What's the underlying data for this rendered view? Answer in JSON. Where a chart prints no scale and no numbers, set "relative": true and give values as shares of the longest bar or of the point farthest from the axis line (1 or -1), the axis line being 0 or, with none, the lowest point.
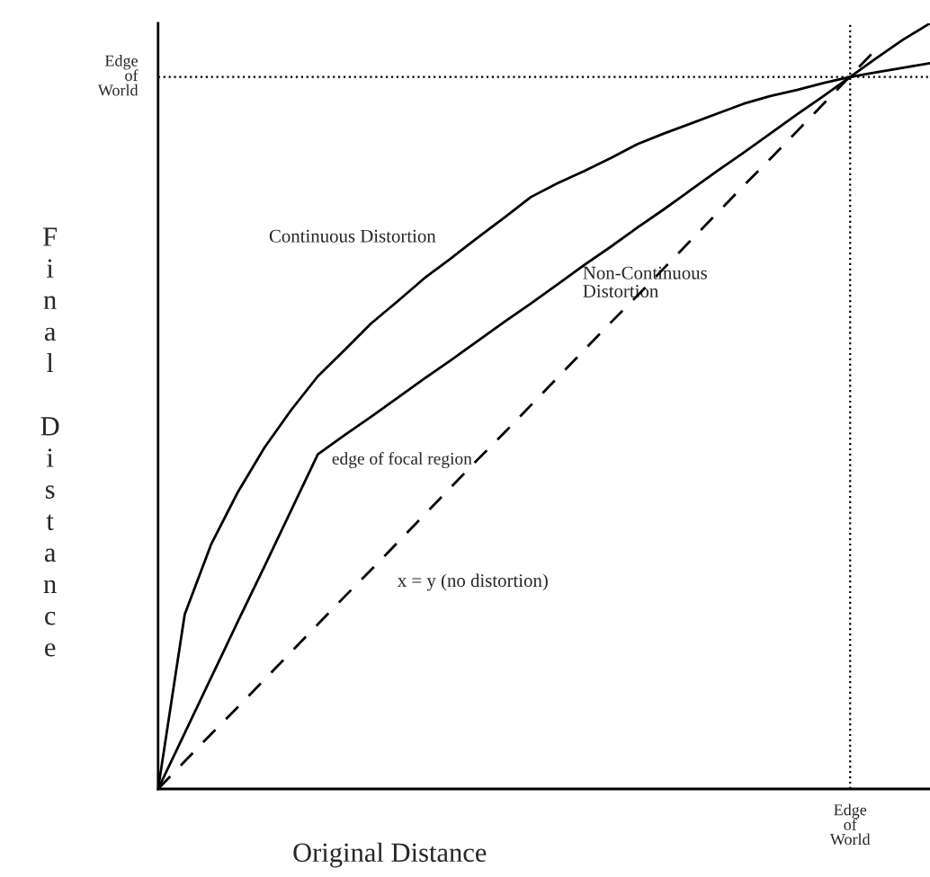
{
  "chart_data": {
    "type": "line",
    "relative": true,
    "xlabel": "Original Distance",
    "ylabel": "Final Distance",
    "categories": [
      null,
      null,
      null,
      null,
      null,
      null,
      null,
      null,
      null,
      null,
      null,
      null,
      null,
      null,
      null,
      null,
      null,
      null,
      null,
      null,
      null,
      null,
      null,
      null,
      null,
      null,
      null,
      null,
      null,
      null
    ],
    "series": [
      {
        "name": "Continuous Distortion",
        "color": "#000000",
        "line_style": "solid",
        "values": [
          0,
          0.228,
          0.32,
          0.388,
          0.446,
          0.495,
          0.539,
          0.573,
          0.608,
          0.637,
          0.667,
          0.693,
          0.72,
          0.746,
          0.773,
          0.791,
          0.807,
          0.824,
          0.842,
          0.856,
          0.869,
          0.882,
          0.895,
          0.905,
          0.913,
          0.922,
          0.93,
          0.936,
          0.942,
          0.948
        ]
      },
      {
        "name": "Non-Continuous Distortion",
        "color": "#000000",
        "line_style": "solid",
        "values": [
          0,
          0.073,
          0.146,
          0.219,
          0.291,
          0.364,
          0.437,
          0.462,
          0.486,
          0.511,
          0.536,
          0.56,
          0.585,
          0.61,
          0.634,
          0.659,
          0.684,
          0.708,
          0.733,
          0.757,
          0.782,
          0.807,
          0.831,
          0.856,
          0.881,
          0.905,
          0.93,
          0.955,
          0.979,
          1.0
        ]
      },
      {
        "name": "x = y (no distortion)",
        "color": "#000000",
        "line_style": "dashed",
        "values": [
          0,
          0.036,
          0.072,
          0.107,
          0.143,
          0.179,
          0.215,
          0.251,
          0.286,
          0.322,
          0.358,
          0.394,
          0.43,
          0.465,
          0.501,
          0.537,
          0.573,
          0.609,
          0.644,
          0.68,
          0.716,
          0.752,
          0.788,
          0.823,
          0.859,
          0.895,
          0.931,
          0.967,
          null,
          null
        ]
      }
    ],
    "ref_lines": [
      {
        "axis": "y",
        "value": 0.93,
        "label": "Edge of World",
        "line_style": "dotted",
        "color": "#000000"
      }
    ],
    "annotations": [
      "edge of focal region",
      "Edge of World"
    ],
    "grid": false,
    "marker": "none"
  }
}
